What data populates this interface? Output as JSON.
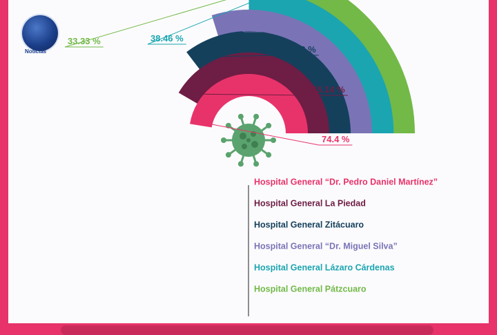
{
  "brand": {
    "logo_text": "Noticias"
  },
  "colors": {
    "frame": "#e8336a",
    "background": "#fbfbfd",
    "virus": "#5aa36e"
  },
  "chart_data": {
    "type": "radial-bar",
    "series": [
      {
        "name": "Hospital General “Dr. Pedro Daniel Martínez”",
        "value": 74.4,
        "label": "74.4 %",
        "color": "#e8336a"
      },
      {
        "name": "Hospital General La Piedad",
        "value": 65.14,
        "label": "65.14 %",
        "color": "#6e1d44"
      },
      {
        "name": "Hospital General Zitácuaro",
        "value": 55.33,
        "label": "55.33 %",
        "color": "#15405c"
      },
      {
        "name": "Hospital General “Dr. Miguel Silva”",
        "value": 46.41,
        "label": "46.41 %",
        "color": "#7a74b6"
      },
      {
        "name": "Hospital General Lázaro Cárdenas",
        "value": 38.46,
        "label": "38.46 %",
        "color": "#1ba5b0"
      },
      {
        "name": "Hospital General Pátzcuaro",
        "value": 33.33,
        "label": "33.33 %",
        "color": "#72b948"
      }
    ]
  }
}
